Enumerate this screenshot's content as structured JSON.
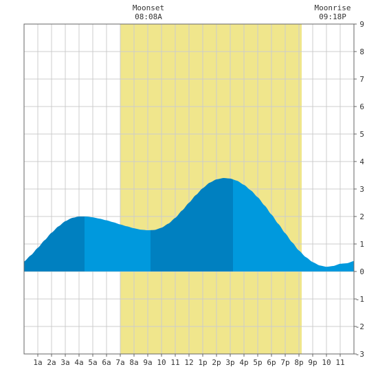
{
  "annotations": {
    "moonset": {
      "label": "Moonset",
      "time": "08:08A"
    },
    "moonrise": {
      "label": "Moonrise",
      "time": "09:18P"
    }
  },
  "chart_data": {
    "type": "area",
    "title": "",
    "xlabel": "",
    "ylabel": "",
    "x_tick_labels": [
      "1a",
      "2a",
      "3a",
      "4a",
      "5a",
      "6a",
      "7a",
      "8a",
      "9a",
      "10",
      "11",
      "12",
      "1p",
      "2p",
      "3p",
      "4p",
      "5p",
      "6p",
      "7p",
      "8p",
      "9p",
      "10",
      "11"
    ],
    "x_range_hours": [
      0,
      24
    ],
    "y_range": [
      -3,
      9
    ],
    "y_ticks": [
      -3,
      -2,
      -1,
      0,
      1,
      2,
      3,
      4,
      5,
      6,
      7,
      8,
      9
    ],
    "grid": true,
    "daylight_band_hours": [
      7,
      20.2
    ],
    "extremes": [
      {
        "kind": "high",
        "hour": 4.4,
        "value": 2.0
      },
      {
        "kind": "low",
        "hour": 9.2,
        "value": 1.5
      },
      {
        "kind": "high",
        "hour": 15.2,
        "value": 3.4
      },
      {
        "kind": "low",
        "hour": 22.8,
        "value": 0.2
      }
    ],
    "series": [
      {
        "x": [
          0,
          0.5,
          1,
          1.5,
          2,
          2.5,
          3,
          3.5,
          4,
          4.5,
          5,
          5.5,
          6,
          6.5,
          7,
          7.5,
          8,
          8.5,
          9,
          9.5,
          10,
          10.5,
          11,
          11.5,
          12,
          12.5,
          13,
          13.5,
          14,
          14.5,
          15,
          15.5,
          16,
          16.5,
          17,
          17.5,
          18,
          18.5,
          19,
          19.5,
          20,
          20.5,
          21,
          21.5,
          22,
          22.5,
          23,
          23.5,
          24
        ],
        "values": [
          0.36,
          0.59,
          0.86,
          1.14,
          1.41,
          1.64,
          1.83,
          1.95,
          2.0,
          2.0,
          1.97,
          1.92,
          1.86,
          1.79,
          1.71,
          1.64,
          1.57,
          1.52,
          1.5,
          1.51,
          1.59,
          1.74,
          1.95,
          2.22,
          2.5,
          2.78,
          3.03,
          3.23,
          3.35,
          3.4,
          3.38,
          3.3,
          3.15,
          2.95,
          2.7,
          2.4,
          2.07,
          1.73,
          1.39,
          1.06,
          0.76,
          0.52,
          0.34,
          0.22,
          0.17,
          0.2,
          0.28,
          0.3,
          0.38
        ]
      }
    ],
    "shading_breaks_hours": [
      0,
      4.4,
      9.2,
      15.2,
      24
    ],
    "colors": {
      "daylight": "#f0e68c",
      "tide_dark": "#0080c0",
      "tide_light": "#0099dd",
      "grid": "#cccccc",
      "frame": "#666666"
    }
  }
}
